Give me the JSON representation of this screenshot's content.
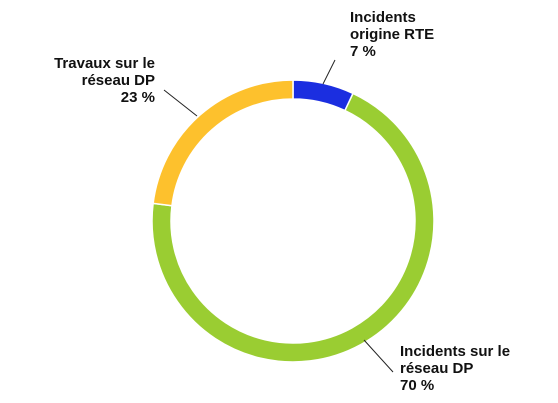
{
  "chart_data": {
    "type": "pie",
    "donut": true,
    "categories": [
      "Incidents origine RTE",
      "Incidents sur le réseau DP",
      "Travaux sur le réseau DP"
    ],
    "values": [
      7,
      70,
      23
    ],
    "value_labels": [
      "7 %",
      "70 %",
      "23 %"
    ],
    "colors": [
      "#1b2ee0",
      "#9acd32",
      "#fdc12d"
    ]
  }
}
